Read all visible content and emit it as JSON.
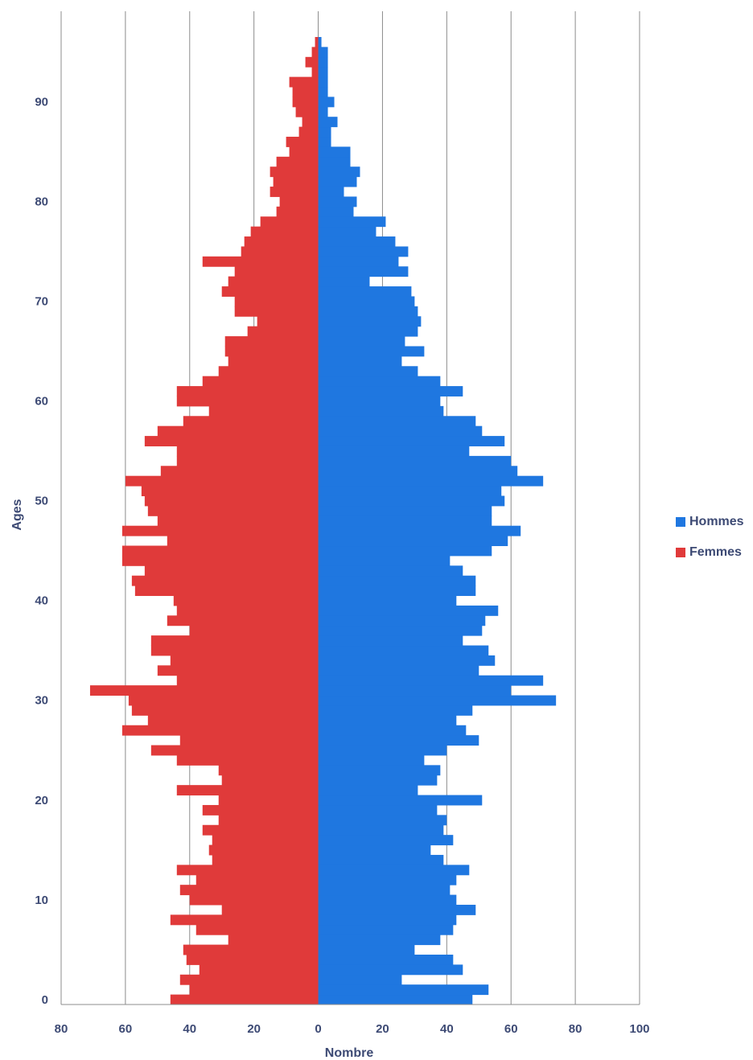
{
  "chart_data": {
    "type": "bar",
    "orientation": "horizontal",
    "layout": "population-pyramid",
    "xlabel": "Nombre",
    "ylabel": "Ages",
    "xlim": [
      -80,
      100
    ],
    "ylim": [
      0,
      97
    ],
    "x_ticks": [
      -80,
      -60,
      -40,
      -20,
      0,
      20,
      40,
      60,
      80,
      100
    ],
    "x_tick_labels": [
      "80",
      "60",
      "40",
      "20",
      "0",
      "20",
      "40",
      "60",
      "80",
      "100"
    ],
    "y_ticks": [
      0,
      10,
      20,
      30,
      40,
      50,
      60,
      70,
      80,
      90
    ],
    "y_tick_labels": [
      "0",
      "10",
      "20",
      "30",
      "40",
      "50",
      "60",
      "70",
      "80",
      "90"
    ],
    "grid": "vertical",
    "legend_position": "right",
    "ages": [
      0,
      1,
      2,
      3,
      4,
      5,
      6,
      7,
      8,
      9,
      10,
      11,
      12,
      13,
      14,
      15,
      16,
      17,
      18,
      19,
      20,
      21,
      22,
      23,
      24,
      25,
      26,
      27,
      28,
      29,
      30,
      31,
      32,
      33,
      34,
      35,
      36,
      37,
      38,
      39,
      40,
      41,
      42,
      43,
      44,
      45,
      46,
      47,
      48,
      49,
      50,
      51,
      52,
      53,
      54,
      55,
      56,
      57,
      58,
      59,
      60,
      61,
      62,
      63,
      64,
      65,
      66,
      67,
      68,
      69,
      70,
      71,
      72,
      73,
      74,
      75,
      76,
      77,
      78,
      79,
      80,
      81,
      82,
      83,
      84,
      85,
      86,
      87,
      88,
      89,
      90,
      91,
      92,
      93,
      94,
      95,
      96
    ],
    "series": [
      {
        "name": "Hommes",
        "color": "#1f77e0",
        "values": [
          48,
          53,
          26,
          45,
          42,
          30,
          38,
          42,
          43,
          49,
          43,
          41,
          43,
          47,
          39,
          35,
          42,
          39,
          40,
          37,
          51,
          31,
          37,
          38,
          33,
          40,
          50,
          46,
          43,
          48,
          74,
          60,
          70,
          50,
          55,
          53,
          45,
          51,
          52,
          56,
          43,
          49,
          49,
          45,
          41,
          54,
          59,
          63,
          54,
          54,
          58,
          57,
          70,
          62,
          60,
          47,
          58,
          51,
          49,
          39,
          38,
          45,
          38,
          31,
          26,
          33,
          27,
          31,
          32,
          31,
          30,
          29,
          16,
          28,
          25,
          28,
          24,
          18,
          21,
          11,
          12,
          8,
          12,
          13,
          10,
          10,
          4,
          4,
          6,
          3,
          5,
          3,
          3,
          3,
          3,
          3,
          1
        ]
      },
      {
        "name": "Femmes",
        "color": "#e03a3a",
        "values": [
          46,
          40,
          43,
          37,
          41,
          42,
          28,
          38,
          46,
          30,
          40,
          43,
          38,
          44,
          33,
          34,
          33,
          36,
          31,
          36,
          31,
          44,
          30,
          31,
          44,
          52,
          43,
          61,
          53,
          58,
          59,
          71,
          44,
          50,
          46,
          52,
          52,
          40,
          47,
          44,
          45,
          57,
          58,
          54,
          61,
          61,
          47,
          61,
          50,
          53,
          54,
          55,
          60,
          49,
          44,
          44,
          54,
          50,
          42,
          34,
          44,
          44,
          36,
          31,
          28,
          29,
          29,
          22,
          19,
          26,
          26,
          30,
          28,
          26,
          36,
          24,
          23,
          21,
          18,
          13,
          12,
          15,
          14,
          15,
          13,
          9,
          10,
          6,
          5,
          7,
          8,
          8,
          9,
          2,
          4,
          2,
          1
        ]
      }
    ]
  }
}
